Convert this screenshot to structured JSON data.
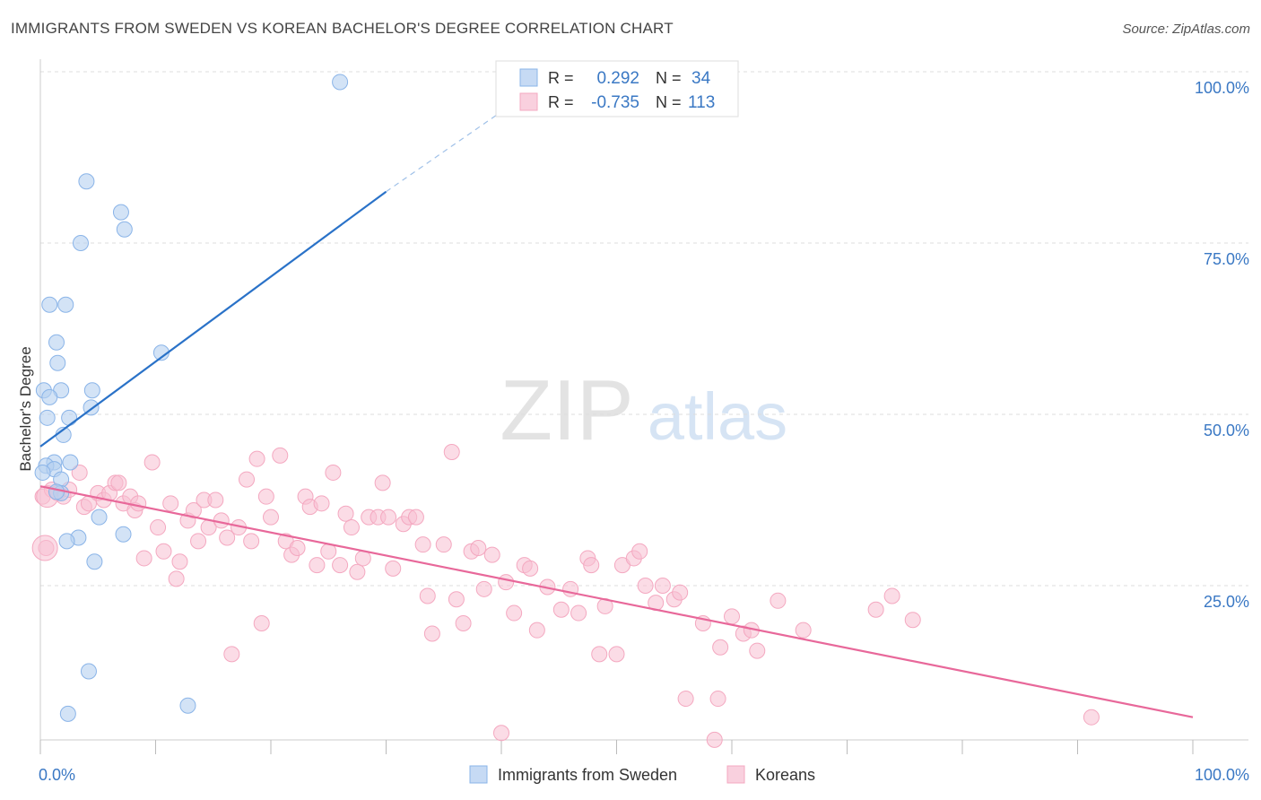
{
  "header": {
    "title": "IMMIGRANTS FROM SWEDEN VS KOREAN BACHELOR'S DEGREE CORRELATION CHART",
    "source": "Source: ZipAtlas.com"
  },
  "watermark": {
    "zip": "ZIP",
    "atlas": "atlas"
  },
  "stats_legend": {
    "rows": [
      {
        "r_label": "R =",
        "r_value": "0.292",
        "n_label": "N =",
        "n_value": "34"
      },
      {
        "r_label": "R =",
        "r_value": "-0.735",
        "n_label": "N =",
        "n_value": "113"
      }
    ]
  },
  "colors": {
    "blue": "#8ab4e8",
    "blue_line": "#2a72c8",
    "pink": "#f4a8c0",
    "pink_line": "#e8689a",
    "axis_text": "#3a78c4",
    "grid": "#dddddd"
  },
  "chart_data": {
    "type": "scatter",
    "title": "IMMIGRANTS FROM SWEDEN VS KOREAN BACHELOR'S DEGREE CORRELATION CHART",
    "xlabel": "",
    "ylabel": "Bachelor's Degree",
    "xlim": [
      0,
      100
    ],
    "ylim": [
      0,
      100
    ],
    "x_tick_labels": [
      "0.0%",
      "100.0%"
    ],
    "y_tick_labels": [
      "25.0%",
      "50.0%",
      "75.0%",
      "100.0%"
    ],
    "y_ticks": [
      25,
      50,
      75,
      100
    ],
    "grid": true,
    "legend_position": "bottom",
    "series": [
      {
        "name": "Immigrants from Sweden",
        "color": "#8ab4e8",
        "trend": {
          "x": [
            0,
            30
          ],
          "y": [
            45.3,
            82.5
          ],
          "dashed_to": [
            45,
            100
          ]
        },
        "points": [
          [
            26,
            98.5
          ],
          [
            4,
            84
          ],
          [
            7,
            79.5
          ],
          [
            7.3,
            77
          ],
          [
            3.5,
            75
          ],
          [
            0.8,
            66
          ],
          [
            2.2,
            66
          ],
          [
            1.4,
            60.5
          ],
          [
            1.5,
            57.5
          ],
          [
            10.5,
            59
          ],
          [
            0.3,
            53.5
          ],
          [
            1.8,
            53.5
          ],
          [
            0.8,
            52.5
          ],
          [
            4.5,
            53.5
          ],
          [
            4.4,
            51
          ],
          [
            0.6,
            49.5
          ],
          [
            2.5,
            49.5
          ],
          [
            2,
            47
          ],
          [
            2.6,
            43
          ],
          [
            1.2,
            43
          ],
          [
            0.5,
            42.5
          ],
          [
            1.2,
            42
          ],
          [
            1.8,
            40.5
          ],
          [
            1.8,
            38.5
          ],
          [
            5.1,
            35
          ],
          [
            3.3,
            32
          ],
          [
            2.3,
            31.5
          ],
          [
            7.2,
            32.5
          ],
          [
            4.7,
            28.5
          ],
          [
            4.2,
            12.5
          ],
          [
            12.8,
            7.5
          ],
          [
            2.4,
            6.3
          ],
          [
            0.2,
            41.5
          ],
          [
            1.4,
            38.7
          ]
        ]
      },
      {
        "name": "Koreans",
        "color": "#f4a8c0",
        "trend": {
          "x": [
            0,
            100
          ],
          "y": [
            39.5,
            5.8
          ]
        },
        "points": [
          [
            0.2,
            38
          ],
          [
            0.5,
            30.5
          ],
          [
            1.0,
            39.0
          ],
          [
            1.5,
            38.5
          ],
          [
            2.0,
            38
          ],
          [
            2.5,
            39
          ],
          [
            3.4,
            41.5
          ],
          [
            3.8,
            36.5
          ],
          [
            4.2,
            37
          ],
          [
            5.0,
            38.5
          ],
          [
            5.5,
            37.5
          ],
          [
            6.0,
            38.5
          ],
          [
            6.5,
            40
          ],
          [
            6.8,
            40
          ],
          [
            7.2,
            37
          ],
          [
            7.8,
            38
          ],
          [
            8.2,
            36
          ],
          [
            8.5,
            37
          ],
          [
            9.0,
            29
          ],
          [
            9.7,
            43
          ],
          [
            10.2,
            33.5
          ],
          [
            10.7,
            30
          ],
          [
            11.3,
            37
          ],
          [
            11.8,
            26
          ],
          [
            12.1,
            28.5
          ],
          [
            12.8,
            34.5
          ],
          [
            13.3,
            36
          ],
          [
            13.7,
            31.5
          ],
          [
            14.2,
            37.5
          ],
          [
            14.6,
            33.5
          ],
          [
            15.2,
            37.5
          ],
          [
            15.7,
            34.5
          ],
          [
            16.2,
            32
          ],
          [
            16.6,
            15
          ],
          [
            17.2,
            33.5
          ],
          [
            17.9,
            40.5
          ],
          [
            18.3,
            31.5
          ],
          [
            18.8,
            43.5
          ],
          [
            19.2,
            19.5
          ],
          [
            19.6,
            38
          ],
          [
            20.0,
            35
          ],
          [
            20.8,
            44
          ],
          [
            21.3,
            31.5
          ],
          [
            21.8,
            29.5
          ],
          [
            22.3,
            30.5
          ],
          [
            23.0,
            38
          ],
          [
            23.4,
            36.5
          ],
          [
            24.0,
            28
          ],
          [
            24.4,
            37
          ],
          [
            25.0,
            30
          ],
          [
            25.4,
            41.5
          ],
          [
            26.0,
            28
          ],
          [
            26.5,
            35.5
          ],
          [
            27.0,
            33.5
          ],
          [
            27.5,
            27
          ],
          [
            28.0,
            29
          ],
          [
            28.5,
            35
          ],
          [
            29.3,
            35
          ],
          [
            29.7,
            40
          ],
          [
            30.2,
            35
          ],
          [
            30.6,
            27.5
          ],
          [
            31.5,
            34
          ],
          [
            32.0,
            35
          ],
          [
            32.6,
            35
          ],
          [
            33.2,
            31
          ],
          [
            33.6,
            23.5
          ],
          [
            34.0,
            18
          ],
          [
            35.0,
            31
          ],
          [
            35.7,
            44.5
          ],
          [
            36.1,
            23
          ],
          [
            36.7,
            19.5
          ],
          [
            37.4,
            30
          ],
          [
            38.0,
            30.5
          ],
          [
            38.5,
            24.5
          ],
          [
            39.2,
            29.5
          ],
          [
            40.0,
            3.5
          ],
          [
            40.4,
            25.5
          ],
          [
            41.1,
            21
          ],
          [
            42.0,
            28
          ],
          [
            42.5,
            27.5
          ],
          [
            43.1,
            18.5
          ],
          [
            45.2,
            21.5
          ],
          [
            46.0,
            24.5
          ],
          [
            46.7,
            21
          ],
          [
            47.5,
            29
          ],
          [
            47.8,
            28
          ],
          [
            48.5,
            15
          ],
          [
            49.0,
            22
          ],
          [
            50.0,
            15
          ],
          [
            50.5,
            28
          ],
          [
            51.5,
            29
          ],
          [
            52.0,
            30
          ],
          [
            52.5,
            25
          ],
          [
            53.4,
            22.5
          ],
          [
            54.0,
            25
          ],
          [
            55.0,
            23
          ],
          [
            55.5,
            24
          ],
          [
            56.0,
            8.5
          ],
          [
            57.5,
            19.5
          ],
          [
            58.5,
            2.5
          ],
          [
            58.8,
            8.5
          ],
          [
            59.0,
            16
          ],
          [
            60.0,
            20.5
          ],
          [
            61.0,
            18
          ],
          [
            61.7,
            18.5
          ],
          [
            62.2,
            15.5
          ],
          [
            66.2,
            18.5
          ],
          [
            72.5,
            21.5
          ],
          [
            73.9,
            23.5
          ],
          [
            75.7,
            20
          ],
          [
            91.2,
            5.8
          ],
          [
            64.0,
            22.8
          ],
          [
            44.0,
            24.8
          ]
        ]
      }
    ]
  },
  "bottom_legend": {
    "items": [
      {
        "label": "Immigrants from Sweden"
      },
      {
        "label": "Koreans"
      }
    ]
  }
}
